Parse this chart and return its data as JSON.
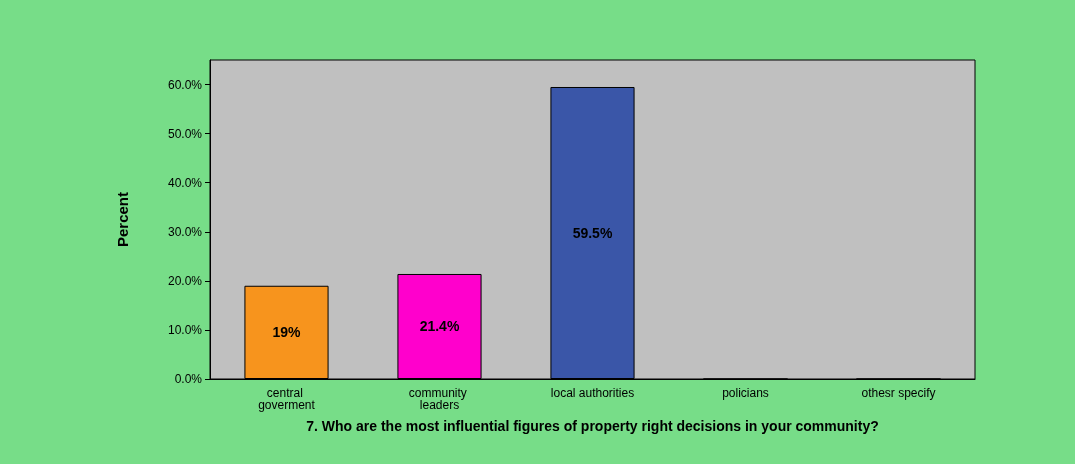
{
  "chart_data": {
    "type": "bar",
    "xlabel": "7. Who are the most influential figures of property right decisions in your community?",
    "ylabel": "Percent",
    "categories": [
      "central goverment",
      "community leaders",
      "local authorities",
      "policians",
      "othesr specify"
    ],
    "values": [
      19,
      21.4,
      59.5,
      0,
      0
    ],
    "colors": [
      "#f7941d",
      "#ff00cc",
      "#3a56a8",
      "#3a56a8",
      "#3a56a8"
    ],
    "value_labels": [
      "19%",
      "21.4%",
      "59.5%",
      null,
      null
    ],
    "ylim": [
      0,
      65
    ],
    "yticks": [
      {
        "value": 0,
        "label": "0.0%"
      },
      {
        "value": 10,
        "label": "10.0%"
      },
      {
        "value": 20,
        "label": "20.0%"
      },
      {
        "value": 30,
        "label": "30.0%"
      },
      {
        "value": 40,
        "label": "40.0%"
      },
      {
        "value": 50,
        "label": "50.0%"
      },
      {
        "value": 60,
        "label": "60.0%"
      }
    ],
    "grid": false
  }
}
